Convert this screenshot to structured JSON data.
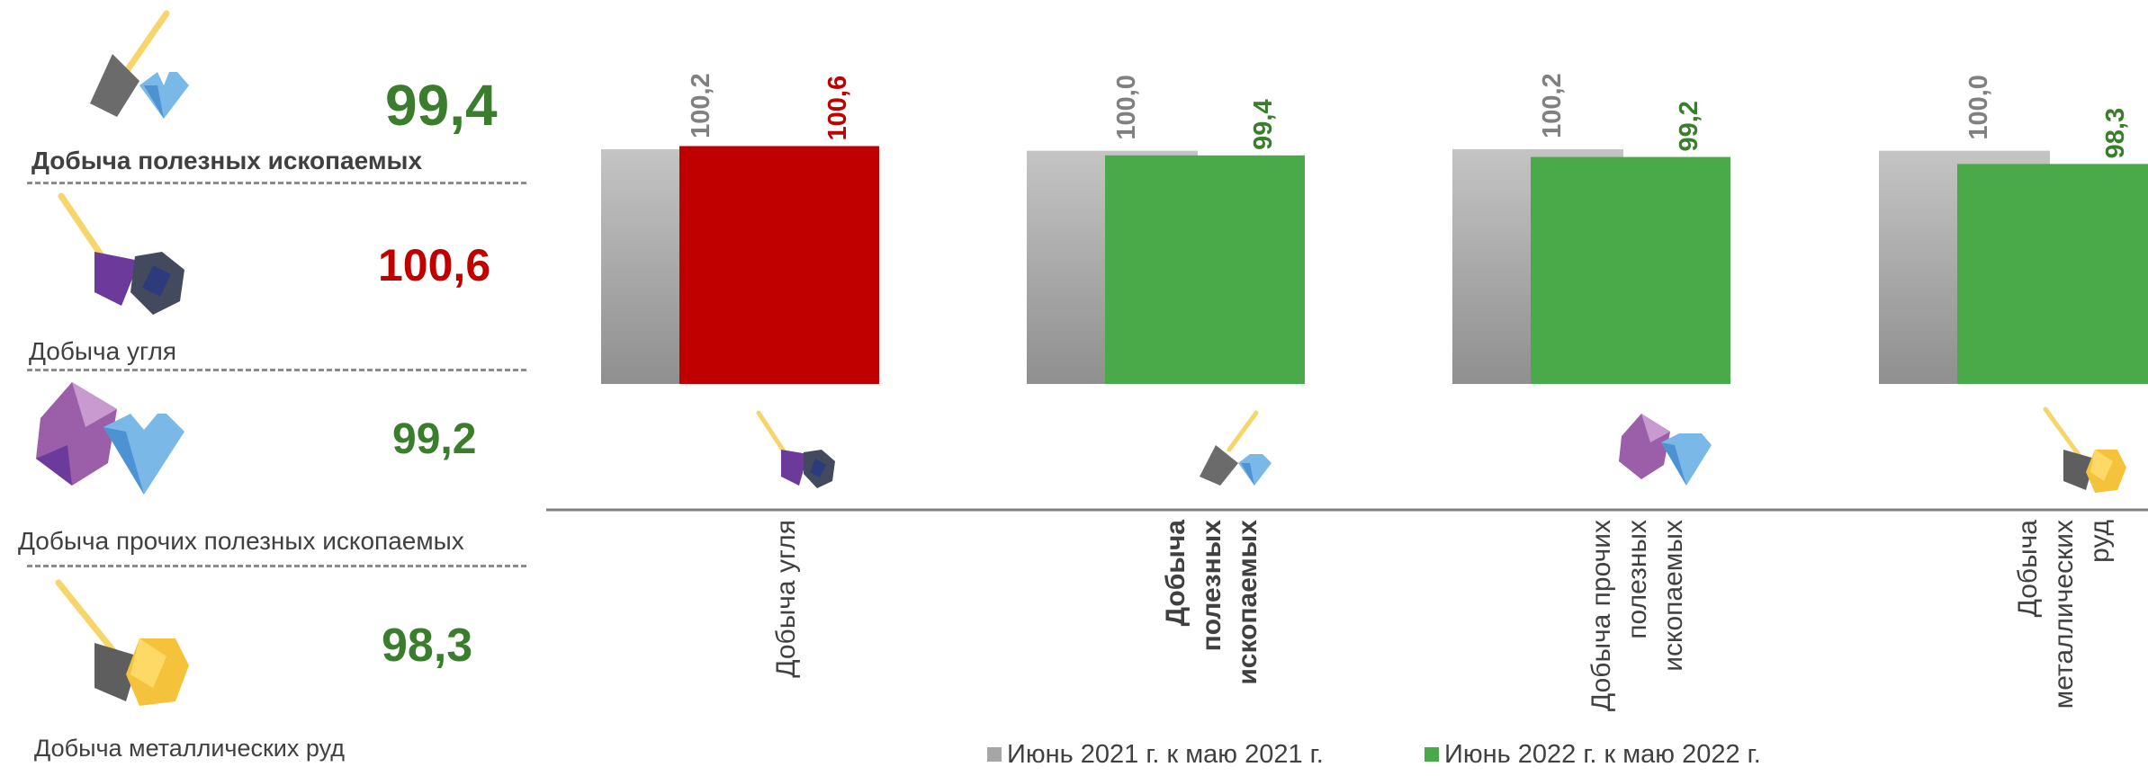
{
  "colors": {
    "prev": "#a6a6a6",
    "increase": "#c00000",
    "decrease": "#4aaa4a",
    "value_prev": "#808080",
    "value_green": "#3a7d2c",
    "value_red": "#c00000"
  },
  "sidebar": [
    {
      "label": "Добыча полезных ископаемых",
      "value": "99,4",
      "icon": "shovel-diamond-icon",
      "color": "#3a7d2c"
    },
    {
      "label": "Добыча угля",
      "value": "100,6",
      "icon": "shovel-coal-icon",
      "color": "#c00000"
    },
    {
      "label": "Добыча прочих полезных ископаемых",
      "value": "99,2",
      "icon": "crystal-diamond-icon",
      "color": "#3a7d2c"
    },
    {
      "label": "Добыча металлических руд",
      "value": "98,3",
      "icon": "shovel-gold-ore-icon",
      "color": "#3a7d2c"
    }
  ],
  "chart_data": {
    "type": "bar",
    "categories": [
      [
        "Добыча угля"
      ],
      [
        "Добыча",
        "полезных",
        "ископаемых"
      ],
      [
        "Добыча прочих",
        "полезных",
        "ископаемых"
      ],
      [
        "Добыча",
        "металлических",
        "руд"
      ]
    ],
    "category_bold": [
      false,
      true,
      false,
      false
    ],
    "category_icons": [
      "shovel-coal-icon",
      "shovel-diamond-icon",
      "crystal-diamond-icon",
      "shovel-gold-ore-icon"
    ],
    "series": [
      {
        "name": "Июнь 2021 г. к маю 2021 г.",
        "values": [
          100.2,
          100.0,
          100.2,
          100.0
        ],
        "labels": [
          "100,2",
          "100,0",
          "100,2",
          "100,0"
        ]
      },
      {
        "name": "Июнь 2022 г. к маю 2022 г.",
        "values": [
          100.6,
          99.4,
          99.2,
          98.3
        ],
        "labels": [
          "100,6",
          "99,4",
          "99,2",
          "98,3"
        ]
      }
    ],
    "ylim": [
      70,
      101
    ]
  },
  "legend": {
    "prev": "Июнь 2021 г. к маю 2021 г.",
    "curr": "Июнь 2022 г. к маю 2022 г."
  }
}
